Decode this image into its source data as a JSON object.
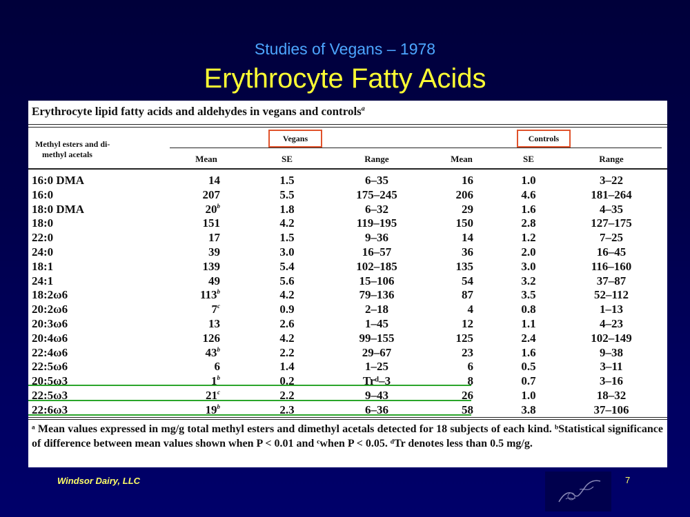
{
  "slide": {
    "subtitle": "Studies of Vegans – 1978",
    "title": "Erythrocyte Fatty Acids",
    "footer": "Windsor Dairy, LLC",
    "page_number": "7",
    "colors": {
      "subtitle": "#4da6ff",
      "title": "#ffff33",
      "highlight_box": "#e0522b",
      "highlight_line": "#2aa52a"
    }
  },
  "table": {
    "caption": "Erythrocyte lipid fatty acids and aldehydes in vegans and controls",
    "caption_sup": "a",
    "row_header_line1": "Methyl esters and di-",
    "row_header_line2": "methyl acetals",
    "group_vegans": "Vegans",
    "group_controls": "Controls",
    "columns": [
      "Mean",
      "SE",
      "Range",
      "Mean",
      "SE",
      "Range"
    ],
    "rows": [
      {
        "name": "16:0 DMA",
        "v_mean": "14",
        "v_sup": "",
        "v_se": "1.5",
        "v_range": "6–35",
        "c_mean": "16",
        "c_se": "1.0",
        "c_range": "3–22"
      },
      {
        "name": "16:0",
        "v_mean": "207",
        "v_sup": "",
        "v_se": "5.5",
        "v_range": "175–245",
        "c_mean": "206",
        "c_se": "4.6",
        "c_range": "181–264"
      },
      {
        "name": "18:0 DMA",
        "v_mean": "20",
        "v_sup": "b",
        "v_se": "1.8",
        "v_range": "6–32",
        "c_mean": "29",
        "c_se": "1.6",
        "c_range": "4–35"
      },
      {
        "name": "18:0",
        "v_mean": "151",
        "v_sup": "",
        "v_se": "4.2",
        "v_range": "119–195",
        "c_mean": "150",
        "c_se": "2.8",
        "c_range": "127–175"
      },
      {
        "name": "22:0",
        "v_mean": "17",
        "v_sup": "",
        "v_se": "1.5",
        "v_range": "9–36",
        "c_mean": "14",
        "c_se": "1.2",
        "c_range": "7–25"
      },
      {
        "name": "24:0",
        "v_mean": "39",
        "v_sup": "",
        "v_se": "3.0",
        "v_range": "16–57",
        "c_mean": "36",
        "c_se": "2.0",
        "c_range": "16–45"
      },
      {
        "name": "18:1",
        "v_mean": "139",
        "v_sup": "",
        "v_se": "5.4",
        "v_range": "102–185",
        "c_mean": "135",
        "c_se": "3.0",
        "c_range": "116–160"
      },
      {
        "name": "24:1",
        "v_mean": "49",
        "v_sup": "",
        "v_se": "5.6",
        "v_range": "15–106",
        "c_mean": "54",
        "c_se": "3.2",
        "c_range": "37–87"
      },
      {
        "name": "18:2ω6",
        "v_mean": "113",
        "v_sup": "b",
        "v_se": "4.2",
        "v_range": "79–136",
        "c_mean": "87",
        "c_se": "3.5",
        "c_range": "52–112"
      },
      {
        "name": "20:2ω6",
        "v_mean": "7",
        "v_sup": "c",
        "v_se": "0.9",
        "v_range": "2–18",
        "c_mean": "4",
        "c_se": "0.8",
        "c_range": "1–13"
      },
      {
        "name": "20:3ω6",
        "v_mean": "13",
        "v_sup": "",
        "v_se": "2.6",
        "v_range": "1–45",
        "c_mean": "12",
        "c_se": "1.1",
        "c_range": "4–23"
      },
      {
        "name": "20:4ω6",
        "v_mean": "126",
        "v_sup": "",
        "v_se": "4.2",
        "v_range": "99–155",
        "c_mean": "125",
        "c_se": "2.4",
        "c_range": "102–149"
      },
      {
        "name": "22:4ω6",
        "v_mean": "43",
        "v_sup": "b",
        "v_se": "2.2",
        "v_range": "29–67",
        "c_mean": "23",
        "c_se": "1.6",
        "c_range": "9–38"
      },
      {
        "name": "22:5ω6",
        "v_mean": "6",
        "v_sup": "",
        "v_se": "1.4",
        "v_range": "1–25",
        "c_mean": "6",
        "c_se": "0.5",
        "c_range": "3–11"
      },
      {
        "name": "20:5ω3",
        "v_mean": "1",
        "v_sup": "b",
        "v_se": "0.2",
        "v_range": "Trᵈ–3",
        "c_mean": "8",
        "c_se": "0.7",
        "c_range": "3–16"
      },
      {
        "name": "22:5ω3",
        "v_mean": "21",
        "v_sup": "c",
        "v_se": "2.2",
        "v_range": "9–43",
        "c_mean": "26",
        "c_se": "1.0",
        "c_range": "18–32"
      },
      {
        "name": "22:6ω3",
        "v_mean": "19",
        "v_sup": "b",
        "v_se": "2.3",
        "v_range": "6–36",
        "c_mean": "58",
        "c_se": "3.8",
        "c_range": "37–106"
      }
    ],
    "footnote": "ᵃ Mean values expressed in mg/g total methyl esters and dimethyl acetals detected for 18 subjects of each kind.   ᵇStatistical significance of difference between mean values shown when P < 0.01 and ᶜwhen P < 0.05.   ᵈTr denotes less than 0.5 mg/g."
  }
}
